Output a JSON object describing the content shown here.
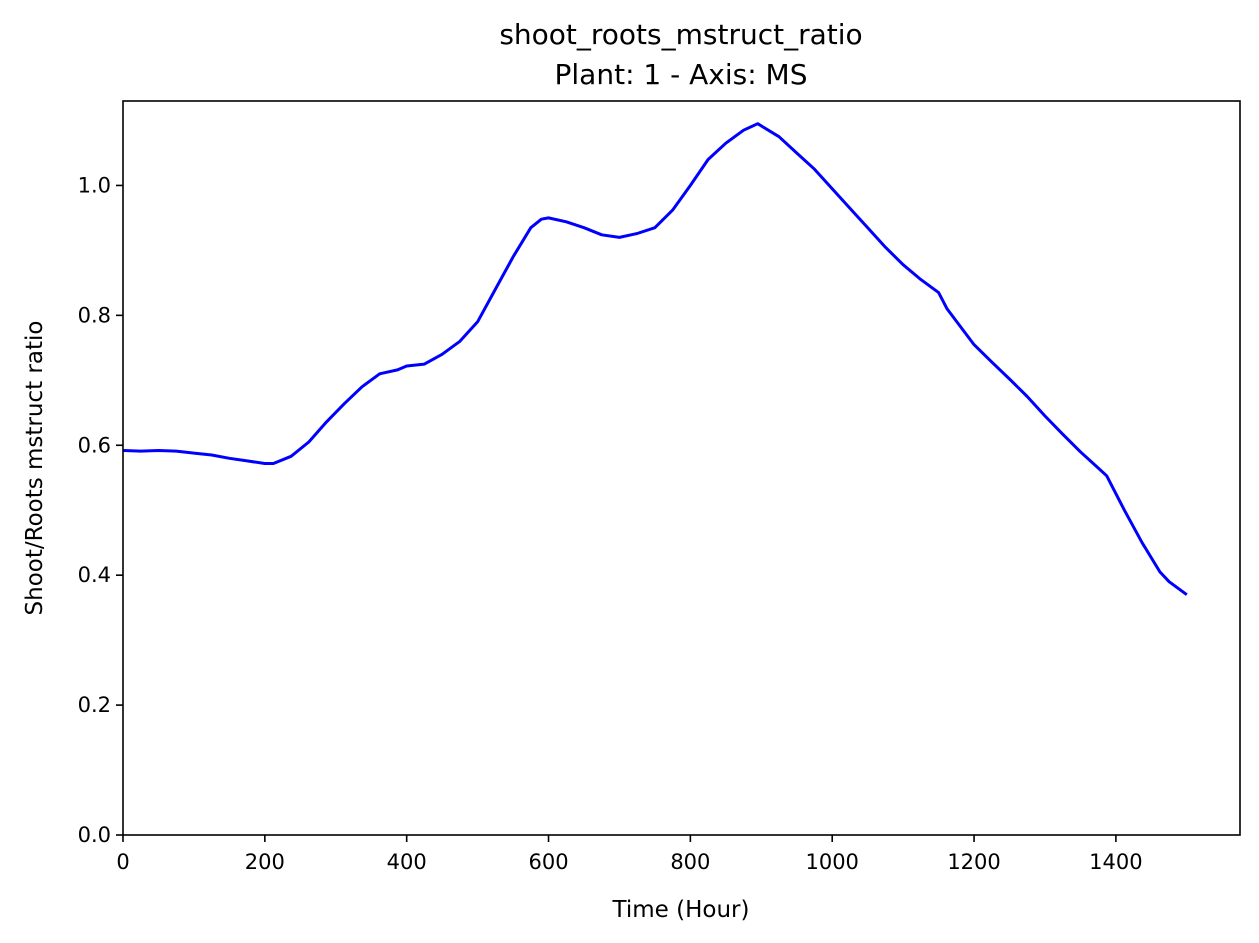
{
  "chart_data": {
    "type": "line",
    "title": "shoot_roots_mstruct_ratio",
    "subtitle": "Plant: 1 - Axis: MS",
    "xlabel": "Time (Hour)",
    "ylabel": "Shoot/Roots mstruct ratio",
    "xlim": [
      0,
      1575
    ],
    "ylim": [
      0,
      1.13
    ],
    "xticks": [
      0,
      200,
      400,
      600,
      800,
      1000,
      1200,
      1400
    ],
    "yticks": [
      0.0,
      0.2,
      0.4,
      0.6,
      0.8,
      1.0
    ],
    "xtick_labels": [
      "0",
      "200",
      "400",
      "600",
      "800",
      "1000",
      "1200",
      "1400"
    ],
    "ytick_labels": [
      "0.0",
      "0.2",
      "0.4",
      "0.6",
      "0.8",
      "1.0"
    ],
    "grid": false,
    "legend": "none",
    "series": [
      {
        "color": "#0000ff",
        "x": [
          0,
          25,
          50,
          75,
          100,
          125,
          150,
          175,
          200,
          212,
          237,
          262,
          287,
          312,
          337,
          362,
          387,
          400,
          425,
          450,
          475,
          500,
          525,
          550,
          575,
          590,
          600,
          625,
          650,
          675,
          700,
          725,
          750,
          775,
          800,
          825,
          850,
          875,
          895,
          925,
          950,
          975,
          1000,
          1025,
          1050,
          1075,
          1100,
          1125,
          1150,
          1162,
          1200,
          1225,
          1250,
          1275,
          1300,
          1325,
          1350,
          1375,
          1387,
          1412,
          1437,
          1462,
          1475,
          1500
        ],
        "y": [
          0.592,
          0.591,
          0.592,
          0.591,
          0.588,
          0.585,
          0.58,
          0.576,
          0.572,
          0.572,
          0.583,
          0.605,
          0.636,
          0.664,
          0.69,
          0.71,
          0.716,
          0.722,
          0.725,
          0.74,
          0.76,
          0.79,
          0.84,
          0.89,
          0.935,
          0.948,
          0.95,
          0.944,
          0.935,
          0.924,
          0.92,
          0.926,
          0.935,
          0.962,
          1.0,
          1.04,
          1.065,
          1.085,
          1.095,
          1.075,
          1.05,
          1.025,
          0.995,
          0.965,
          0.935,
          0.905,
          0.878,
          0.855,
          0.835,
          0.81,
          0.755,
          0.728,
          0.702,
          0.675,
          0.645,
          0.617,
          0.59,
          0.565,
          0.553,
          0.5,
          0.45,
          0.405,
          0.39,
          0.37
        ]
      }
    ]
  }
}
